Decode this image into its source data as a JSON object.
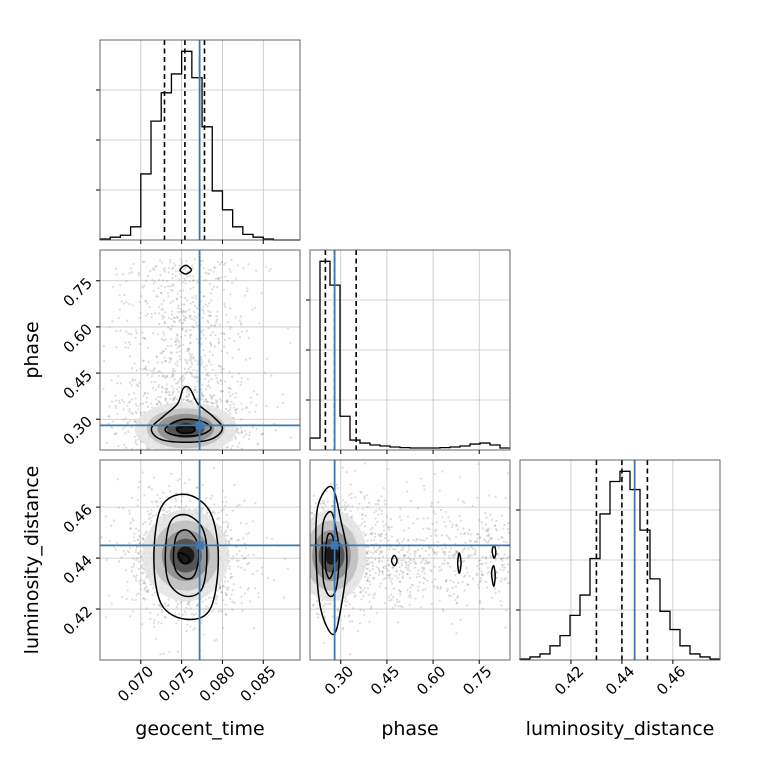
{
  "chart_data": {
    "type": "corner",
    "colors": {
      "truth": "#3d79b0",
      "hist": "#000000",
      "scatter": "#808080",
      "grid": "#c4c4c4"
    },
    "parameters": [
      {
        "name": "geocent_time",
        "label": "geocent_time",
        "range": [
          0.065,
          0.0895
        ],
        "ticks": [
          0.07,
          0.075,
          0.08,
          0.085
        ],
        "tick_labels": [
          "0.070",
          "0.075",
          "0.080",
          "0.085"
        ],
        "truth": 0.0772,
        "quantiles": [
          0.0729,
          0.0754,
          0.0778
        ],
        "hist_edges_start": 0.065,
        "hist_bin_width": 0.00125,
        "hist": [
          0.5,
          1.5,
          2.5,
          7,
          35,
          63,
          78,
          88,
          100,
          86,
          60,
          26,
          16,
          7,
          3,
          1.5,
          0.5,
          0,
          0,
          0
        ]
      },
      {
        "name": "phase",
        "label": "phase",
        "range": [
          0.2,
          0.85
        ],
        "ticks": [
          0.3,
          0.45,
          0.6,
          0.75
        ],
        "tick_labels": [
          "0.30",
          "0.45",
          "0.60",
          "0.75"
        ],
        "truth": 0.28,
        "quantiles": [
          0.25,
          0.28,
          0.35
        ],
        "hist_edges_start": 0.2,
        "hist_bin_width": 0.0325,
        "hist": [
          6,
          95,
          83,
          17,
          5,
          3.5,
          2.5,
          2,
          1.5,
          1.2,
          1,
          1,
          1,
          1.2,
          1.5,
          2,
          3,
          3.5,
          2.5,
          1
        ]
      },
      {
        "name": "luminosity_distance",
        "label": "luminosity_distance",
        "range": [
          0.4,
          0.4785
        ],
        "ticks": [
          0.42,
          0.44,
          0.46
        ],
        "tick_labels": [
          "0.42",
          "0.44",
          "0.46"
        ],
        "truth": 0.445,
        "quantiles": [
          0.43,
          0.44,
          0.45
        ],
        "hist_edges_start": 0.4,
        "hist_bin_width": 0.003925,
        "hist": [
          0.5,
          1.5,
          3,
          7,
          12,
          22,
          32,
          50,
          72,
          88,
          93,
          84,
          64,
          40,
          24,
          15,
          7,
          3,
          1.5,
          0.5
        ]
      }
    ],
    "pairs": [
      {
        "x": "geocent_time",
        "y": "phase",
        "center": [
          0.0755,
          0.27
        ],
        "spread": [
          0.0033,
          0.045
        ],
        "outlier_center": [
          0.0754,
          0.785
        ],
        "contours": [
          [
            [
              0.0713,
              0.27
            ],
            [
              0.0728,
              0.31
            ],
            [
              0.0745,
              0.35
            ],
            [
              0.0752,
              0.4
            ],
            [
              0.076,
              0.4
            ],
            [
              0.077,
              0.35
            ],
            [
              0.0788,
              0.31
            ],
            [
              0.08,
              0.27
            ],
            [
              0.0786,
              0.235
            ],
            [
              0.0755,
              0.225
            ],
            [
              0.0724,
              0.235
            ]
          ],
          [
            [
              0.073,
              0.27
            ],
            [
              0.0745,
              0.295
            ],
            [
              0.076,
              0.3
            ],
            [
              0.0778,
              0.29
            ],
            [
              0.0786,
              0.27
            ],
            [
              0.0774,
              0.25
            ],
            [
              0.0755,
              0.245
            ],
            [
              0.0736,
              0.252
            ]
          ],
          [
            [
              0.0744,
              0.268
            ],
            [
              0.0755,
              0.278
            ],
            [
              0.0766,
              0.272
            ],
            [
              0.0764,
              0.258
            ],
            [
              0.075,
              0.255
            ]
          ],
          [
            [
              0.0748,
              0.785
            ],
            [
              0.0755,
              0.8
            ],
            [
              0.0762,
              0.785
            ],
            [
              0.0755,
              0.772
            ]
          ]
        ]
      },
      {
        "x": "geocent_time",
        "y": "luminosity_distance",
        "center": [
          0.0755,
          0.441
        ],
        "spread": [
          0.0028,
          0.0095
        ],
        "outlier_center": null,
        "contours": [
          [
            [
              0.0716,
              0.44
            ],
            [
              0.0725,
              0.46
            ],
            [
              0.0755,
              0.465
            ],
            [
              0.0785,
              0.458
            ],
            [
              0.0795,
              0.44
            ],
            [
              0.0785,
              0.42
            ],
            [
              0.0755,
              0.416
            ],
            [
              0.0725,
              0.422
            ]
          ],
          [
            [
              0.073,
              0.441
            ],
            [
              0.0736,
              0.454
            ],
            [
              0.0755,
              0.457
            ],
            [
              0.0775,
              0.452
            ],
            [
              0.0781,
              0.441
            ],
            [
              0.0775,
              0.428
            ],
            [
              0.0755,
              0.425
            ],
            [
              0.0735,
              0.43
            ]
          ],
          [
            [
              0.074,
              0.441
            ],
            [
              0.0744,
              0.449
            ],
            [
              0.0756,
              0.451
            ],
            [
              0.0768,
              0.447
            ],
            [
              0.0771,
              0.44
            ],
            [
              0.0765,
              0.433
            ],
            [
              0.0754,
              0.432
            ],
            [
              0.0743,
              0.435
            ]
          ],
          [
            [
              0.0746,
              0.442
            ],
            [
              0.0752,
              0.438
            ],
            [
              0.076,
              0.439
            ],
            [
              0.0756,
              0.441
            ]
          ]
        ]
      },
      {
        "x": "phase",
        "y": "luminosity_distance",
        "center": [
          0.27,
          0.441
        ],
        "spread": [
          0.06,
          0.0095
        ],
        "outlier_center": null,
        "contours": [
          [
            [
              0.22,
              0.44
            ],
            [
              0.225,
              0.46
            ],
            [
              0.27,
              0.468
            ],
            [
              0.3,
              0.455
            ],
            [
              0.32,
              0.44
            ],
            [
              0.3,
              0.42
            ],
            [
              0.275,
              0.41
            ],
            [
              0.235,
              0.42
            ]
          ],
          [
            [
              0.24,
              0.441
            ],
            [
              0.243,
              0.454
            ],
            [
              0.27,
              0.458
            ],
            [
              0.29,
              0.448
            ],
            [
              0.295,
              0.44
            ],
            [
              0.285,
              0.428
            ],
            [
              0.265,
              0.425
            ],
            [
              0.245,
              0.43
            ]
          ],
          [
            [
              0.25,
              0.441
            ],
            [
              0.258,
              0.449
            ],
            [
              0.275,
              0.448
            ],
            [
              0.28,
              0.438
            ],
            [
              0.265,
              0.432
            ],
            [
              0.252,
              0.435
            ]
          ],
          [
            [
              0.465,
              0.439
            ],
            [
              0.474,
              0.441
            ],
            [
              0.483,
              0.439
            ],
            [
              0.474,
              0.437
            ]
          ],
          [
            [
              0.68,
              0.438
            ],
            [
              0.685,
              0.442
            ],
            [
              0.691,
              0.438
            ],
            [
              0.685,
              0.434
            ]
          ],
          [
            [
              0.79,
              0.434
            ],
            [
              0.797,
              0.437
            ],
            [
              0.802,
              0.433
            ],
            [
              0.797,
              0.429
            ]
          ],
          [
            [
              0.792,
              0.443
            ],
            [
              0.799,
              0.445
            ],
            [
              0.804,
              0.442
            ],
            [
              0.798,
              0.44
            ]
          ]
        ]
      }
    ]
  }
}
